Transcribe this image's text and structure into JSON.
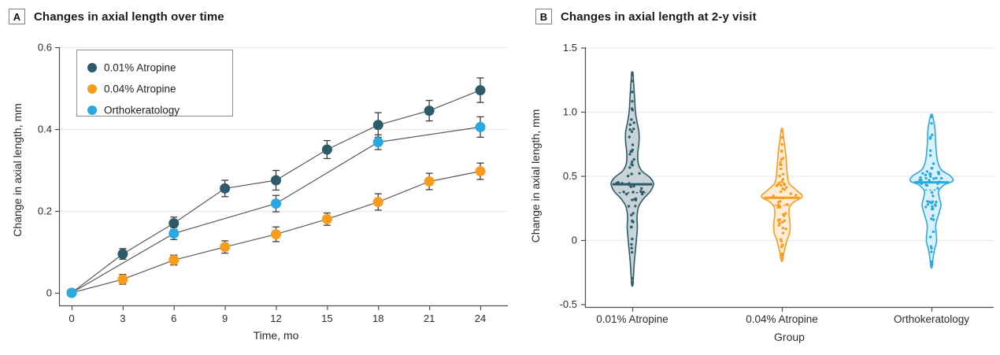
{
  "panels": {
    "a": {
      "letter": "A",
      "title": "Changes in axial length over time"
    },
    "b": {
      "letter": "B",
      "title": "Changes in axial length at 2-y visit"
    }
  },
  "chart_data": [
    {
      "type": "line",
      "panel": "A",
      "title": "Changes in axial length over time",
      "xlabel": "Time, mo",
      "ylabel": "Change in axial length, mm",
      "xlim": [
        0,
        24
      ],
      "ylim": [
        0,
        0.6
      ],
      "x_ticks": [
        0,
        3,
        6,
        9,
        12,
        15,
        18,
        21,
        24
      ],
      "x_tick_labels": [
        "0",
        "3",
        "6",
        "9",
        "12",
        "15",
        "18",
        "21",
        "24"
      ],
      "y_ticks": [
        0,
        0.2,
        0.4,
        0.6
      ],
      "y_tick_labels": [
        "0",
        "0.2",
        "0.4",
        "0.6"
      ],
      "grid": "horizontal",
      "legend_position": "upper-left",
      "series": [
        {
          "name": "0.01% Atropine",
          "color": "#2C5B6B",
          "x": [
            0,
            3,
            6,
            9,
            12,
            15,
            18,
            21,
            24
          ],
          "y": [
            0,
            0.095,
            0.17,
            0.255,
            0.275,
            0.35,
            0.41,
            0.445,
            0.495
          ],
          "err": [
            0,
            0.013,
            0.015,
            0.02,
            0.024,
            0.022,
            0.03,
            0.025,
            0.03
          ]
        },
        {
          "name": "0.04% Atropine",
          "color": "#F99C1E",
          "x": [
            0,
            3,
            6,
            9,
            12,
            15,
            18,
            21,
            24
          ],
          "y": [
            0,
            0.033,
            0.08,
            0.112,
            0.143,
            0.18,
            0.222,
            0.272,
            0.297
          ],
          "err": [
            0,
            0.012,
            0.012,
            0.015,
            0.018,
            0.015,
            0.02,
            0.02,
            0.02
          ]
        },
        {
          "name": "Orthokeratology",
          "color": "#29A9E1",
          "x": [
            0,
            6,
            12,
            18,
            24
          ],
          "y": [
            0,
            0.145,
            0.218,
            0.368,
            0.405
          ],
          "err": [
            0,
            0.015,
            0.02,
            0.018,
            0.025
          ]
        }
      ],
      "style": {
        "line_color": "#5A5A5C",
        "error_bar_color": "#3D3D3F",
        "axis_color": "#4D4D4F",
        "grid_color": "#EAEAEA",
        "tick_text_color": "#2B2B2B"
      }
    },
    {
      "type": "violin",
      "panel": "B",
      "title": "Changes in axial length at 2-y visit",
      "xlabel": "Group",
      "ylabel": "Change in axial length, mm",
      "ylim": [
        -0.5,
        1.5
      ],
      "y_ticks": [
        -0.5,
        0,
        0.5,
        1.0,
        1.5
      ],
      "y_tick_labels": [
        "-0.5",
        "0",
        "0.5",
        "1.0",
        "1.5"
      ],
      "categories": [
        "0.01% Atropine",
        "0.04% Atropine",
        "Orthokeratology"
      ],
      "grid": "horizontal",
      "groups": [
        {
          "name": "0.01% Atropine",
          "color": "#2C5B6B",
          "fill": "#C9D4D8",
          "median": 0.435,
          "quartile": 0.37,
          "range": [
            -0.35,
            1.31
          ],
          "n_dots": 58,
          "seed": 7,
          "profile": [
            [
              -0.35,
              0.8
            ],
            [
              -0.28,
              1.5
            ],
            [
              -0.18,
              2.5
            ],
            [
              -0.08,
              4
            ],
            [
              0.02,
              5.5
            ],
            [
              0.1,
              6.5
            ],
            [
              0.18,
              6
            ],
            [
              0.26,
              8
            ],
            [
              0.32,
              14
            ],
            [
              0.38,
              23
            ],
            [
              0.44,
              27
            ],
            [
              0.49,
              22
            ],
            [
              0.54,
              12
            ],
            [
              0.6,
              7.5
            ],
            [
              0.68,
              7
            ],
            [
              0.76,
              8.5
            ],
            [
              0.84,
              8.5
            ],
            [
              0.92,
              6
            ],
            [
              1.0,
              4
            ],
            [
              1.1,
              3
            ],
            [
              1.2,
              2
            ],
            [
              1.31,
              0.8
            ]
          ]
        },
        {
          "name": "0.04% Atropine",
          "color": "#F99C1E",
          "fill": "#FDEDD6",
          "median": 0.33,
          "quartile": 0.27,
          "range": [
            -0.16,
            0.87
          ],
          "n_dots": 55,
          "seed": 13,
          "profile": [
            [
              -0.16,
              0.8
            ],
            [
              -0.1,
              2.5
            ],
            [
              -0.05,
              4.5
            ],
            [
              0.0,
              6.5
            ],
            [
              0.05,
              9.5
            ],
            [
              0.1,
              10.5
            ],
            [
              0.15,
              10
            ],
            [
              0.2,
              9
            ],
            [
              0.26,
              10
            ],
            [
              0.3,
              16
            ],
            [
              0.34,
              26
            ],
            [
              0.39,
              18
            ],
            [
              0.44,
              9.5
            ],
            [
              0.5,
              7
            ],
            [
              0.58,
              6
            ],
            [
              0.66,
              5
            ],
            [
              0.74,
              3.5
            ],
            [
              0.8,
              2
            ],
            [
              0.87,
              0.8
            ]
          ]
        },
        {
          "name": "Orthokeratology",
          "color": "#29A9E1",
          "fill": "#DAF1FB",
          "median": 0.45,
          "quartile": 0.39,
          "range": [
            -0.21,
            0.98
          ],
          "n_dots": 58,
          "seed": 21,
          "profile": [
            [
              -0.21,
              0.8
            ],
            [
              -0.14,
              2
            ],
            [
              -0.07,
              4
            ],
            [
              -0.01,
              6.5
            ],
            [
              0.05,
              6
            ],
            [
              0.12,
              5.5
            ],
            [
              0.2,
              9
            ],
            [
              0.27,
              12
            ],
            [
              0.33,
              10
            ],
            [
              0.38,
              9
            ],
            [
              0.43,
              16
            ],
            [
              0.46,
              27
            ],
            [
              0.5,
              24
            ],
            [
              0.55,
              12
            ],
            [
              0.62,
              7.5
            ],
            [
              0.7,
              6
            ],
            [
              0.78,
              5
            ],
            [
              0.86,
              4.5
            ],
            [
              0.92,
              3
            ],
            [
              0.98,
              0.8
            ]
          ]
        }
      ],
      "style": {
        "axis_color": "#4D4D4F",
        "grid_color": "#EAEAEA",
        "tick_text_color": "#2B2B2B"
      }
    }
  ]
}
